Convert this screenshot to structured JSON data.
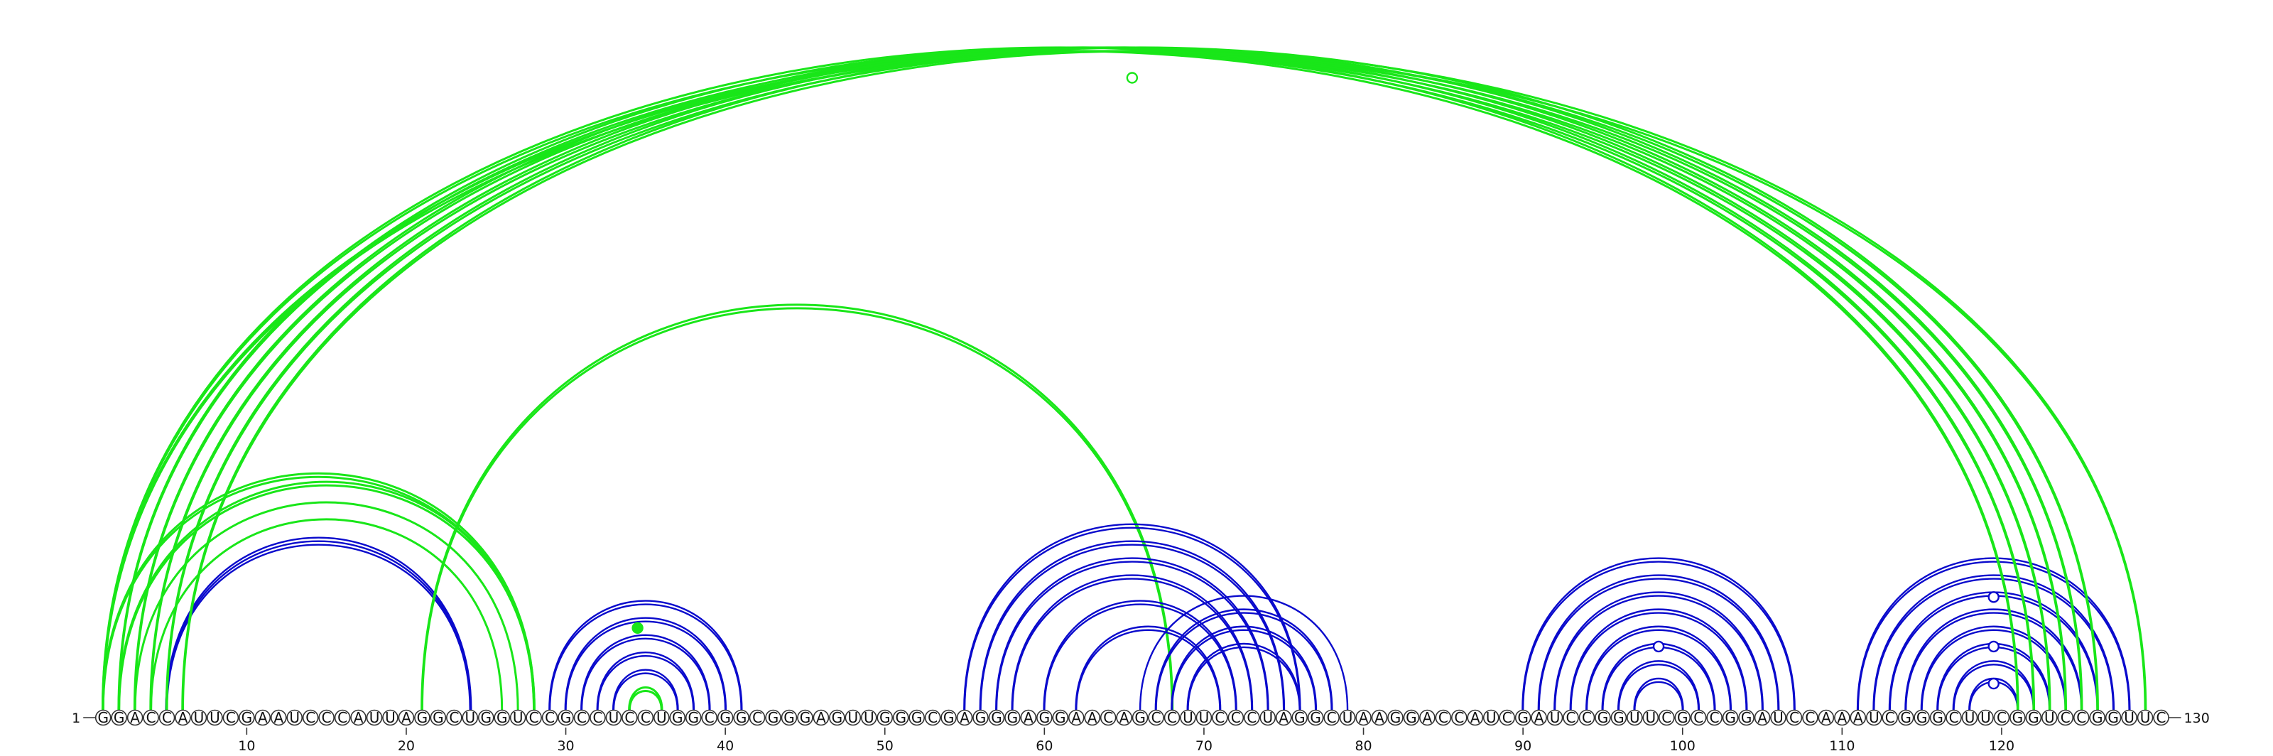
{
  "diagram": {
    "type": "rna-arc-diagram",
    "sequence": "GGACCAUUCGAAUCCCAUUAGGCUGGUCCGCCUCCUGGCGGCGGGAGUUGGGCGAGGGAGGAACAGCCUUCCCUAGGCUAAGGACCAUCGAUCCGGUUCGCCGGAUCCAAAUCGGGCUUCGGUCCGGUUC",
    "start_label": "1",
    "end_label": "130",
    "ticks": [
      10,
      20,
      30,
      40,
      50,
      60,
      70,
      80,
      90,
      100,
      110,
      120
    ],
    "colors": {
      "blue": "#0a0acc",
      "green": "#19e619",
      "nucleotide_stroke": "#333333"
    },
    "arc_groups": [
      {
        "color": "blue",
        "i": 5,
        "j": 24,
        "count": 3
      },
      {
        "color": "green",
        "i": 4,
        "j": 26,
        "count": 1
      },
      {
        "color": "green",
        "i": 3,
        "j": 27,
        "count": 1
      },
      {
        "color": "green",
        "i": 2,
        "j": 28,
        "count": 2
      },
      {
        "color": "green",
        "i": 1,
        "j": 28,
        "count": 2
      },
      {
        "color": "blue",
        "i": 29,
        "j": 41,
        "count": 2
      },
      {
        "color": "blue",
        "i": 30,
        "j": 40,
        "count": 2
      },
      {
        "color": "blue",
        "i": 31,
        "j": 39,
        "count": 2
      },
      {
        "color": "blue",
        "i": 32,
        "j": 38,
        "count": 2
      },
      {
        "color": "blue",
        "i": 33,
        "j": 37,
        "count": 2
      },
      {
        "color": "green",
        "i": 34,
        "j": 36,
        "count": 2
      },
      {
        "color": "green",
        "i": 21,
        "j": 68,
        "count": 2
      },
      {
        "color": "blue",
        "i": 55,
        "j": 76,
        "count": 2
      },
      {
        "color": "blue",
        "i": 56,
        "j": 75,
        "count": 2
      },
      {
        "color": "blue",
        "i": 57,
        "j": 74,
        "count": 2
      },
      {
        "color": "blue",
        "i": 58,
        "j": 73,
        "count": 2
      },
      {
        "color": "blue",
        "i": 60,
        "j": 72,
        "count": 2
      },
      {
        "color": "blue",
        "i": 62,
        "j": 71,
        "count": 2
      },
      {
        "color": "blue",
        "i": 66,
        "j": 79,
        "count": 1
      },
      {
        "color": "blue",
        "i": 67,
        "j": 78,
        "count": 2
      },
      {
        "color": "blue",
        "i": 68,
        "j": 77,
        "count": 2
      },
      {
        "color": "blue",
        "i": 69,
        "j": 76,
        "count": 2
      },
      {
        "color": "blue",
        "i": 90,
        "j": 107,
        "count": 2
      },
      {
        "color": "blue",
        "i": 91,
        "j": 106,
        "count": 2
      },
      {
        "color": "blue",
        "i": 92,
        "j": 105,
        "count": 2
      },
      {
        "color": "blue",
        "i": 93,
        "j": 104,
        "count": 2
      },
      {
        "color": "blue",
        "i": 94,
        "j": 103,
        "count": 2
      },
      {
        "color": "blue",
        "i": 95,
        "j": 102,
        "count": 2
      },
      {
        "color": "blue",
        "i": 96,
        "j": 101,
        "count": 2
      },
      {
        "color": "blue",
        "i": 97,
        "j": 100,
        "count": 2
      },
      {
        "color": "blue",
        "i": 111,
        "j": 128,
        "count": 2
      },
      {
        "color": "blue",
        "i": 112,
        "j": 127,
        "count": 2
      },
      {
        "color": "blue",
        "i": 113,
        "j": 126,
        "count": 2
      },
      {
        "color": "blue",
        "i": 114,
        "j": 125,
        "count": 2
      },
      {
        "color": "blue",
        "i": 115,
        "j": 124,
        "count": 2
      },
      {
        "color": "blue",
        "i": 116,
        "j": 123,
        "count": 2
      },
      {
        "color": "blue",
        "i": 117,
        "j": 122,
        "count": 2
      },
      {
        "color": "blue",
        "i": 118,
        "j": 121,
        "count": 2
      },
      {
        "color": "green",
        "i": 1,
        "j": 121,
        "count": 2
      },
      {
        "color": "green",
        "i": 2,
        "j": 122,
        "count": 2
      },
      {
        "color": "green",
        "i": 3,
        "j": 123,
        "count": 2
      },
      {
        "color": "green",
        "i": 4,
        "j": 124,
        "count": 2
      },
      {
        "color": "green",
        "i": 5,
        "j": 125,
        "count": 2
      },
      {
        "color": "green",
        "i": 6,
        "j": 126,
        "count": 2
      },
      {
        "color": "green",
        "i": 1,
        "j": 129,
        "count": 2
      }
    ],
    "markers": [
      {
        "position": 34.5,
        "level": 0.11,
        "color": "green",
        "filled": true
      },
      {
        "position": 65.5,
        "level": 1.0,
        "color": "green",
        "filled": false
      },
      {
        "position": 98.5,
        "level": 0.08,
        "color": "blue",
        "filled": false
      },
      {
        "position": 119.5,
        "level": 0.16,
        "color": "blue",
        "filled": false
      },
      {
        "position": 119.5,
        "level": 0.08,
        "color": "blue",
        "filled": false
      },
      {
        "position": 119.5,
        "level": 0.02,
        "color": "blue",
        "filled": false
      }
    ]
  }
}
